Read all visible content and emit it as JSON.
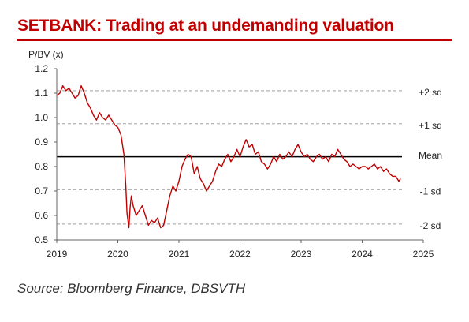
{
  "chart_data": {
    "type": "line",
    "title": "SETBANK: Trading at an undemanding valuation",
    "ylabel": "P/BV (x)",
    "xlabel": "",
    "ylim": [
      0.5,
      1.2
    ],
    "yticks": [
      "0.5",
      "0.6",
      "0.7",
      "0.8",
      "0.9",
      "1.0",
      "1.1",
      "1.2"
    ],
    "xlim": [
      2019,
      2025
    ],
    "xticks": [
      "2019",
      "2020",
      "2021",
      "2022",
      "2023",
      "2024",
      "2025"
    ],
    "grid": false,
    "line_color": "#c00000",
    "series": [
      {
        "x": [
          2019.0,
          2019.05,
          2019.1,
          2019.15,
          2019.2,
          2019.25,
          2019.3,
          2019.35,
          2019.4,
          2019.45,
          2019.5,
          2019.55,
          2019.6,
          2019.65,
          2019.7,
          2019.75,
          2019.8,
          2019.85,
          2019.9,
          2019.95,
          2020.0,
          2020.05,
          2020.1,
          2020.13,
          2020.15,
          2020.18,
          2020.2,
          2020.22,
          2020.25,
          2020.3,
          2020.35,
          2020.4,
          2020.45,
          2020.5,
          2020.55,
          2020.6,
          2020.65,
          2020.7,
          2020.75,
          2020.8,
          2020.85,
          2020.9,
          2020.95,
          2021.0,
          2021.05,
          2021.1,
          2021.15,
          2021.2,
          2021.25,
          2021.3,
          2021.35,
          2021.4,
          2021.45,
          2021.5,
          2021.55,
          2021.6,
          2021.65,
          2021.7,
          2021.75,
          2021.8,
          2021.85,
          2021.9,
          2021.95,
          2022.0,
          2022.05,
          2022.1,
          2022.15,
          2022.2,
          2022.25,
          2022.3,
          2022.35,
          2022.4,
          2022.45,
          2022.5,
          2022.55,
          2022.6,
          2022.65,
          2022.7,
          2022.75,
          2022.8,
          2022.85,
          2022.9,
          2022.95,
          2023.0,
          2023.05,
          2023.1,
          2023.15,
          2023.2,
          2023.25,
          2023.3,
          2023.35,
          2023.4,
          2023.45,
          2023.5,
          2023.55,
          2023.6,
          2023.65,
          2023.7,
          2023.75,
          2023.8,
          2023.85,
          2023.9,
          2023.95,
          2024.0,
          2024.05,
          2024.1,
          2024.15,
          2024.2,
          2024.25,
          2024.3,
          2024.35,
          2024.4,
          2024.45,
          2024.5,
          2024.55,
          2024.6,
          2024.63
        ],
        "values": [
          1.09,
          1.1,
          1.13,
          1.11,
          1.12,
          1.1,
          1.08,
          1.09,
          1.13,
          1.1,
          1.06,
          1.04,
          1.01,
          0.99,
          1.02,
          1.0,
          0.99,
          1.01,
          0.99,
          0.97,
          0.96,
          0.93,
          0.85,
          0.72,
          0.61,
          0.55,
          0.63,
          0.68,
          0.64,
          0.6,
          0.62,
          0.64,
          0.6,
          0.56,
          0.58,
          0.57,
          0.59,
          0.55,
          0.56,
          0.62,
          0.68,
          0.72,
          0.7,
          0.74,
          0.8,
          0.83,
          0.85,
          0.84,
          0.77,
          0.8,
          0.75,
          0.73,
          0.7,
          0.72,
          0.74,
          0.78,
          0.81,
          0.8,
          0.83,
          0.85,
          0.82,
          0.84,
          0.87,
          0.84,
          0.88,
          0.91,
          0.88,
          0.89,
          0.85,
          0.86,
          0.82,
          0.81,
          0.79,
          0.81,
          0.84,
          0.82,
          0.85,
          0.83,
          0.84,
          0.86,
          0.84,
          0.87,
          0.89,
          0.86,
          0.84,
          0.85,
          0.83,
          0.82,
          0.84,
          0.85,
          0.83,
          0.84,
          0.82,
          0.85,
          0.84,
          0.87,
          0.85,
          0.83,
          0.82,
          0.8,
          0.81,
          0.8,
          0.79,
          0.8,
          0.8,
          0.79,
          0.8,
          0.81,
          0.79,
          0.8,
          0.78,
          0.79,
          0.77,
          0.76,
          0.76,
          0.74,
          0.75
        ]
      }
    ],
    "reference_lines": [
      {
        "label": "+2 sd",
        "value": 1.11,
        "style": "dashed"
      },
      {
        "label": "+1 sd",
        "value": 0.975,
        "style": "dashed"
      },
      {
        "label": "Mean",
        "value": 0.84,
        "style": "solid"
      },
      {
        "label": "-1 sd",
        "value": 0.705,
        "style": "dashed"
      },
      {
        "label": "-2 sd",
        "value": 0.565,
        "style": "dashed"
      }
    ]
  },
  "source": "Source: Bloomberg Finance, DBSVTH"
}
